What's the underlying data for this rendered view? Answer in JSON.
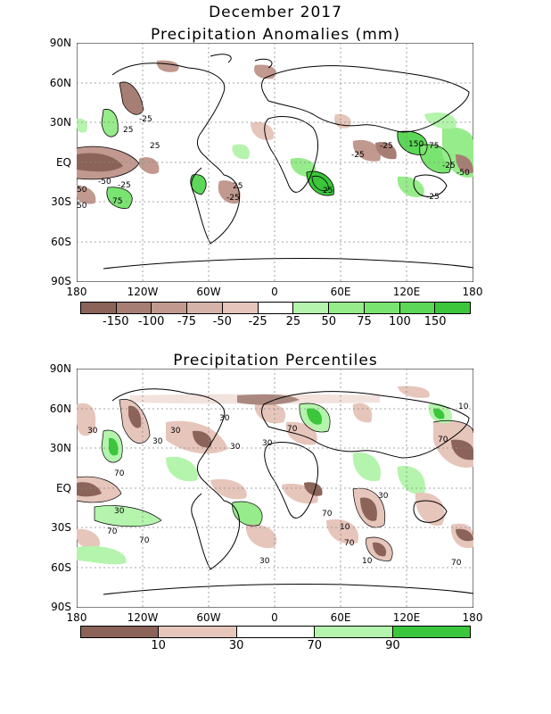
{
  "header": {
    "line1": "December 2017",
    "line2": "Precipitation Anomalies (mm)"
  },
  "panel2": {
    "title": "Precipitation Percentiles"
  },
  "axes": {
    "lat_labels": [
      "90N",
      "60N",
      "30N",
      "EQ",
      "30S",
      "60S",
      "90S"
    ],
    "lon_labels": [
      "180",
      "120W",
      "60W",
      "0",
      "60E",
      "120E",
      "180"
    ]
  },
  "legend1": {
    "colors": [
      "#8b6358",
      "#a77e74",
      "#c1998e",
      "#d6b3a8",
      "#e6c5bb",
      "#ffffff",
      "#b4f4ac",
      "#96eb8a",
      "#7ae470",
      "#5cd757",
      "#3bc63b"
    ],
    "labels": [
      "-150",
      "-100",
      "-75",
      "-50",
      "-25",
      "25",
      "50",
      "75",
      "100",
      "150"
    ]
  },
  "legend2": {
    "colors": [
      "#8b6358",
      "#e6c5bb",
      "#ffffff",
      "#b4f4ac",
      "#3bc63b"
    ],
    "labels": [
      "10",
      "30",
      "70",
      "90"
    ]
  },
  "map1_contour_labels": [
    "-25",
    "25",
    "25",
    "-50",
    "-25",
    "50",
    "75",
    "-25",
    "25",
    "-25",
    "-25",
    "25",
    "50",
    "75",
    "-25",
    "-25",
    "150",
    "-50"
  ],
  "map2_contour_labels": [
    "30",
    "30",
    "30",
    "30",
    "70",
    "30",
    "70",
    "30",
    "70",
    "30",
    "70",
    "70",
    "10",
    "70",
    "30",
    "70",
    "10",
    "70",
    "10",
    "30"
  ]
}
